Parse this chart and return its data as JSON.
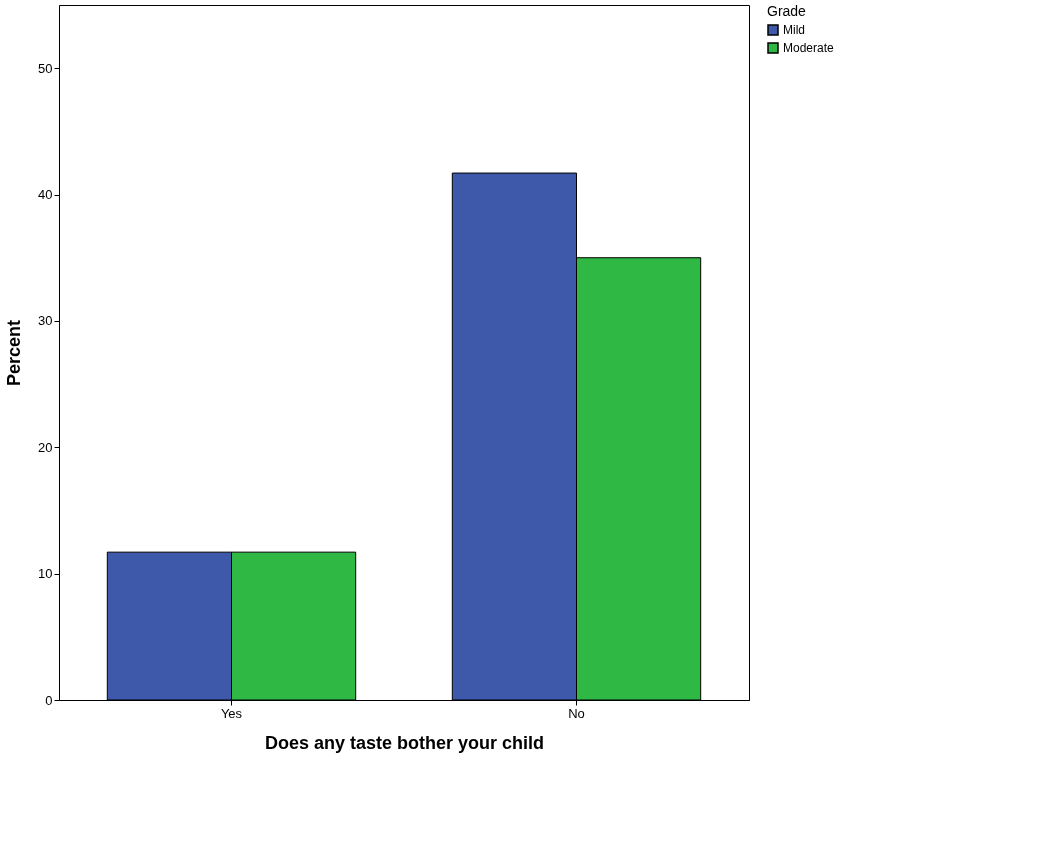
{
  "chart_data": {
    "type": "bar",
    "xlabel": "Does any taste bother your child",
    "ylabel": "Percent",
    "legend_title": "Grade",
    "categories": [
      "Yes",
      "No"
    ],
    "series": [
      {
        "name": "Mild",
        "color": "#3f59aa",
        "values": [
          11.7,
          41.7
        ]
      },
      {
        "name": "Moderate",
        "color": "#2fb844",
        "values": [
          11.7,
          35.0
        ]
      }
    ],
    "ylim": [
      0,
      55
    ],
    "yticks": [
      0,
      10,
      20,
      30,
      40,
      50
    ],
    "grid": false,
    "legend": "top right"
  }
}
